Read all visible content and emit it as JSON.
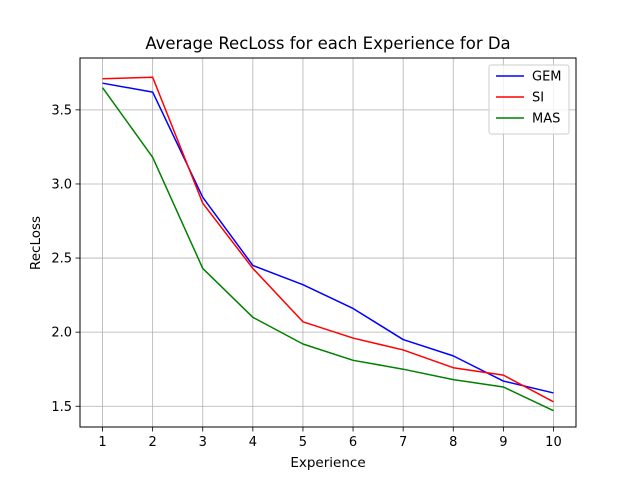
{
  "chart_data": {
    "type": "line",
    "title": "Average RecLoss for each Experience for Da",
    "xlabel": "Experience",
    "ylabel": "RecLoss",
    "x": [
      1,
      2,
      3,
      4,
      5,
      6,
      7,
      8,
      9,
      10
    ],
    "xlim": [
      0.55,
      10.45
    ],
    "ylim": [
      1.36,
      3.85
    ],
    "xticks": [
      1,
      2,
      3,
      4,
      5,
      6,
      7,
      8,
      9,
      10
    ],
    "yticks": [
      1.5,
      2.0,
      2.5,
      3.0,
      3.5
    ],
    "ytick_labels": [
      "1.5",
      "2.0",
      "2.5",
      "3.0",
      "3.5"
    ],
    "grid": true,
    "legend_position": "top-right",
    "series": [
      {
        "name": "GEM",
        "color": "#0000ff",
        "values": [
          3.68,
          3.62,
          2.91,
          2.45,
          2.32,
          2.16,
          1.95,
          1.84,
          1.67,
          1.59
        ]
      },
      {
        "name": "SI",
        "color": "#ff0000",
        "values": [
          3.71,
          3.72,
          2.87,
          2.43,
          2.07,
          1.96,
          1.88,
          1.76,
          1.71,
          1.53
        ]
      },
      {
        "name": "MAS",
        "color": "#008000",
        "values": [
          3.65,
          3.18,
          2.43,
          2.1,
          1.92,
          1.81,
          1.75,
          1.68,
          1.63,
          1.47
        ]
      }
    ]
  }
}
